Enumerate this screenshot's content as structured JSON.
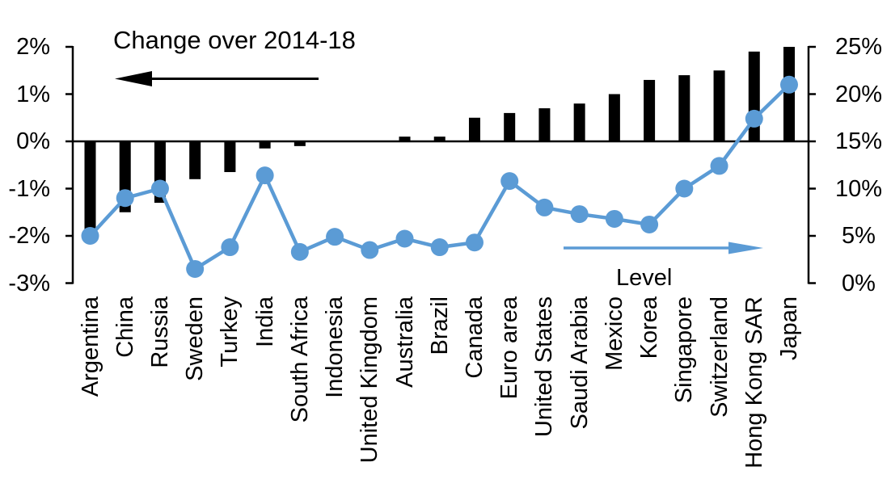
{
  "chart_data": {
    "type": "bar",
    "subtype": "combo-bar-line-dual-axis",
    "title": "",
    "categories": [
      "Argentina",
      "China",
      "Russia",
      "Sweden",
      "Turkey",
      "India",
      "South Africa",
      "Indonesia",
      "United Kingdom",
      "Australia",
      "Brazil",
      "Canada",
      "Euro area",
      "United States",
      "Saudi Arabia",
      "Mexico",
      "Korea",
      "Singapore",
      "Switzerland",
      "Hong Kong SAR",
      "Japan"
    ],
    "series": [
      {
        "name": "Change over 2014-18",
        "type": "bar",
        "axis": "left",
        "unit": "%",
        "color": "#000000",
        "values": [
          -2.0,
          -1.5,
          -1.3,
          -0.8,
          -0.65,
          -0.15,
          -0.1,
          0,
          0,
          0.1,
          0.1,
          0.5,
          0.6,
          0.7,
          0.8,
          1.0,
          1.3,
          1.4,
          1.5,
          1.9,
          2.0
        ]
      },
      {
        "name": "Level",
        "type": "line",
        "axis": "right",
        "unit": "%",
        "color": "#5b9bd5",
        "values": [
          5.0,
          9.0,
          10.0,
          1.5,
          3.8,
          11.4,
          3.3,
          4.9,
          3.5,
          4.7,
          3.8,
          4.3,
          10.8,
          8.0,
          7.3,
          6.8,
          6.2,
          10.0,
          12.4,
          17.4,
          21.0
        ]
      }
    ],
    "left_axis": {
      "labels": [
        "2%",
        "1%",
        "0%",
        "-1%",
        "-2%",
        "-3%"
      ],
      "values": [
        2,
        1,
        0,
        -1,
        -2,
        -3
      ],
      "min": -3,
      "max": 2
    },
    "right_axis": {
      "labels": [
        "25%",
        "20%",
        "15%",
        "10%",
        "5%",
        "0%"
      ],
      "values": [
        25,
        20,
        15,
        10,
        5,
        0
      ],
      "min": 0,
      "max": 25
    },
    "annotations": {
      "bar_label": "Change over 2014-18",
      "line_label": "Level",
      "bar_arrow_direction": "left",
      "line_arrow_direction": "right"
    },
    "grid": false,
    "legend_position": "in-plot annotations with arrows"
  }
}
